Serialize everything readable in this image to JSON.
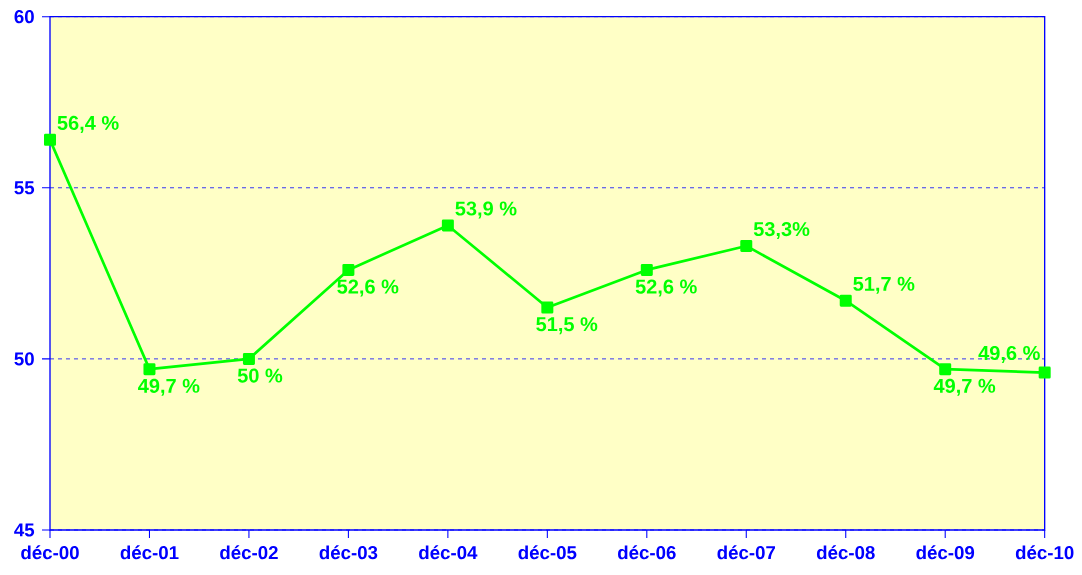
{
  "chart_data": {
    "type": "line",
    "categories": [
      "déc-00",
      "déc-01",
      "déc-02",
      "déc-03",
      "déc-04",
      "déc-05",
      "déc-06",
      "déc-07",
      "déc-08",
      "déc-09",
      "déc-10"
    ],
    "series": [
      {
        "color": "#00ff00",
        "values": [
          56.4,
          49.7,
          50,
          52.6,
          53.9,
          51.5,
          52.6,
          53.3,
          51.7,
          49.7,
          49.6
        ],
        "value_labels": [
          "56,4 %",
          "49,7 %",
          "50 %",
          "52,6 %",
          "53,9 %",
          "51,5 %",
          "52,6 %",
          "53,3%",
          "51,7 %",
          "49,7 %",
          "49,6 %"
        ]
      }
    ],
    "ylim": [
      45,
      60
    ],
    "yticks": [
      45,
      50,
      55,
      60
    ],
    "grid": "y",
    "marker": "square",
    "line_style": "solid"
  }
}
